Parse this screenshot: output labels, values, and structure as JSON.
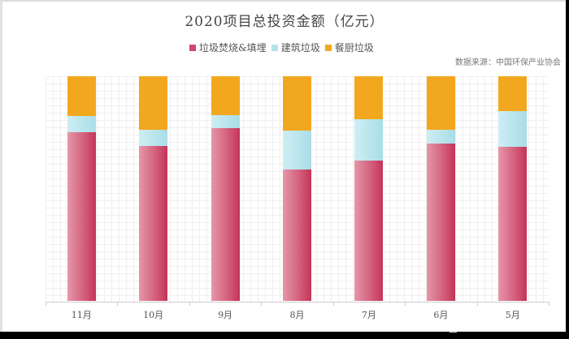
{
  "chart_data": {
    "type": "bar",
    "stacked": true,
    "normalized_percent": true,
    "title": "2020项目总投资金额（亿元）",
    "source_note": "数据来源：中国环保产业协会",
    "xlabel": "",
    "ylabel": "",
    "ylim": [
      0,
      100
    ],
    "grid": true,
    "legend_position": "top",
    "categories": [
      "11月",
      "10月",
      "9月",
      "8月",
      "7月",
      "6月",
      "5月"
    ],
    "series": [
      {
        "name": "垃圾焚烧&填埋",
        "color": "#D0486B",
        "values": [
          75.1,
          69.0,
          76.9,
          58.5,
          62.5,
          70.0,
          68.6
        ]
      },
      {
        "name": "建筑垃圾",
        "color": "#B5E2EA",
        "values": [
          7.2,
          7.2,
          5.8,
          17.3,
          18.4,
          6.1,
          15.9
        ]
      },
      {
        "name": "餐厨垃圾",
        "color": "#F2A81E",
        "values": [
          17.7,
          23.8,
          17.3,
          24.2,
          19.1,
          23.8,
          15.5
        ]
      }
    ]
  },
  "legend": [
    {
      "label": "垃圾焚烧&填埋",
      "color": "#D0486B"
    },
    {
      "label": "建筑垃圾",
      "color": "#B5E2EA"
    },
    {
      "label": "餐厨垃圾",
      "color": "#F2A81E"
    }
  ]
}
